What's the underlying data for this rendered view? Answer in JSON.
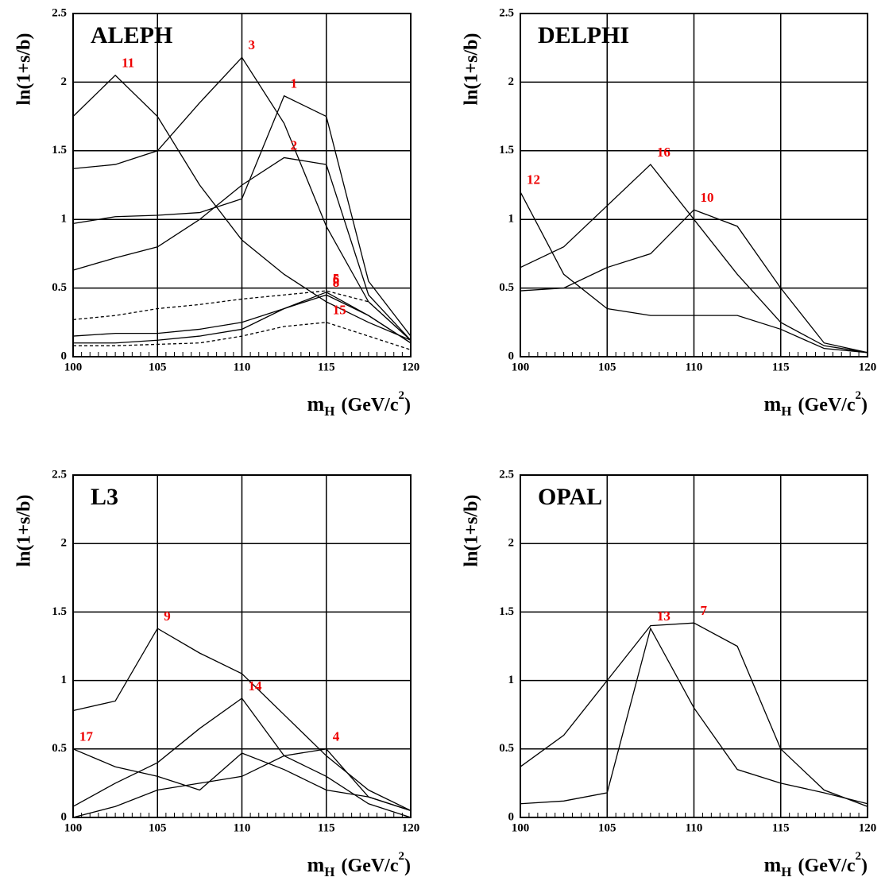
{
  "chart_data": [
    {
      "type": "line",
      "title": "ALEPH",
      "ylabel": "ln(1+s/b)",
      "xlabel": [
        "m",
        "H",
        "(GeV/c",
        "2",
        ")"
      ],
      "xlim": [
        100,
        120
      ],
      "xticks": [
        100,
        105,
        110,
        115,
        120
      ],
      "ylim": [
        0,
        2.5
      ],
      "yticks": [
        0,
        0.5,
        1,
        1.5,
        2,
        2.5
      ],
      "grid": true,
      "x": [
        100,
        102.5,
        105,
        107.5,
        110,
        112.5,
        115,
        117.5,
        120
      ],
      "series": [
        {
          "name": "11",
          "color": "#000",
          "values": [
            1.75,
            2.05,
            1.75,
            1.25,
            0.85,
            0.6,
            0.4,
            0.25,
            0.12
          ]
        },
        {
          "name": "3",
          "color": "#000",
          "values": [
            1.37,
            1.4,
            1.5,
            1.85,
            2.18,
            1.7,
            0.95,
            0.4,
            0.12
          ]
        },
        {
          "name": "1",
          "color": "#000",
          "values": [
            0.97,
            1.02,
            1.03,
            1.05,
            1.15,
            1.9,
            1.75,
            0.55,
            0.15
          ]
        },
        {
          "name": "2",
          "color": "#000",
          "values": [
            0.63,
            0.72,
            0.8,
            1.0,
            1.25,
            1.45,
            1.4,
            0.45,
            0.12
          ]
        },
        {
          "name": "5",
          "color": "#000",
          "dash": true,
          "values": [
            0.27,
            0.3,
            0.35,
            0.38,
            0.42,
            0.45,
            0.48,
            0.4,
            0.12
          ]
        },
        {
          "name": "8",
          "color": "#000",
          "values": [
            0.15,
            0.17,
            0.17,
            0.2,
            0.25,
            0.35,
            0.45,
            0.3,
            0.1
          ]
        },
        {
          "name": "6",
          "color": "#000",
          "values": [
            0.1,
            0.1,
            0.12,
            0.15,
            0.2,
            0.35,
            0.47,
            0.3,
            0.1
          ]
        },
        {
          "name": "15",
          "color": "#000",
          "dash": true,
          "values": [
            0.08,
            0.08,
            0.09,
            0.1,
            0.15,
            0.22,
            0.25,
            0.15,
            0.05
          ]
        }
      ]
    },
    {
      "type": "line",
      "title": "DELPHI",
      "ylabel": "ln(1+s/b)",
      "xlabel": [
        "m",
        "H",
        "(GeV/c",
        "2",
        ")"
      ],
      "xlim": [
        100,
        120
      ],
      "xticks": [
        100,
        105,
        110,
        115,
        120
      ],
      "ylim": [
        0,
        2.5
      ],
      "yticks": [
        0,
        0.5,
        1,
        1.5,
        2,
        2.5
      ],
      "grid": true,
      "x": [
        100,
        102.5,
        105,
        107.5,
        110,
        112.5,
        115,
        117.5,
        120
      ],
      "series": [
        {
          "name": "16",
          "color": "#000",
          "values": [
            0.65,
            0.8,
            1.1,
            1.4,
            1.0,
            0.6,
            0.25,
            0.08,
            0.03
          ]
        },
        {
          "name": "10",
          "color": "#000",
          "values": [
            0.48,
            0.5,
            0.65,
            0.75,
            1.07,
            0.95,
            0.5,
            0.1,
            0.03
          ]
        },
        {
          "name": "12",
          "color": "#000",
          "values": [
            1.2,
            0.6,
            0.35,
            0.3,
            0.3,
            0.3,
            0.2,
            0.06,
            0.03
          ]
        }
      ]
    },
    {
      "type": "line",
      "title": "L3",
      "ylabel": "ln(1+s/b)",
      "xlabel": [
        "m",
        "H",
        "(GeV/c",
        "2",
        ")"
      ],
      "xlim": [
        100,
        120
      ],
      "xticks": [
        100,
        105,
        110,
        115,
        120
      ],
      "ylim": [
        0,
        2.5
      ],
      "yticks": [
        0,
        0.5,
        1,
        1.5,
        2,
        2.5
      ],
      "grid": true,
      "x": [
        100,
        102.5,
        105,
        107.5,
        110,
        112.5,
        115,
        117.5,
        120
      ],
      "series": [
        {
          "name": "9",
          "color": "#000",
          "values": [
            0.78,
            0.85,
            1.38,
            1.2,
            1.05,
            0.75,
            0.45,
            0.2,
            0.05
          ]
        },
        {
          "name": "14",
          "color": "#000",
          "values": [
            0.08,
            0.25,
            0.4,
            0.65,
            0.87,
            0.45,
            0.3,
            0.1,
            0
          ]
        },
        {
          "name": "17",
          "color": "#000",
          "values": [
            0.5,
            0.37,
            0.3,
            0.2,
            0.47,
            0.35,
            0.2,
            0.15,
            0.05
          ]
        },
        {
          "name": "4",
          "color": "#000",
          "values": [
            0,
            0.08,
            0.2,
            0.25,
            0.3,
            0.45,
            0.5,
            0.15,
            0.05
          ]
        }
      ]
    },
    {
      "type": "line",
      "title": "OPAL",
      "ylabel": "ln(1+s/b)",
      "xlabel": [
        "m",
        "H",
        "(GeV/c",
        "2",
        ")"
      ],
      "xlim": [
        100,
        120
      ],
      "xticks": [
        100,
        105,
        110,
        115,
        120
      ],
      "ylim": [
        0,
        2.5
      ],
      "yticks": [
        0,
        0.5,
        1,
        1.5,
        2,
        2.5
      ],
      "grid": true,
      "x": [
        100,
        102.5,
        105,
        107.5,
        110,
        112.5,
        115,
        117.5,
        120
      ],
      "series": [
        {
          "name": "7",
          "color": "#000",
          "values": [
            0.37,
            0.6,
            1.0,
            1.4,
            1.42,
            1.25,
            0.5,
            0.2,
            0.08
          ]
        },
        {
          "name": "13",
          "color": "#000",
          "values": [
            0.1,
            0.12,
            0.18,
            1.38,
            0.8,
            0.35,
            0.25,
            0.18,
            0.1
          ]
        }
      ]
    }
  ]
}
